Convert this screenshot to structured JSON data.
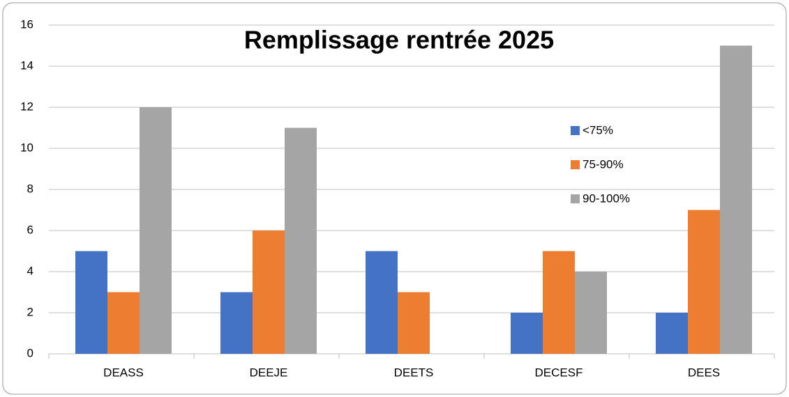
{
  "chart_data": {
    "type": "bar",
    "title": "Remplissage rentrée 2025",
    "categories": [
      "DEASS",
      "DEEJE",
      "DEETS",
      "DECESF",
      "DEES"
    ],
    "series": [
      {
        "name": "<75%",
        "color": "#4472c4",
        "values": [
          5,
          3,
          5,
          2,
          2
        ]
      },
      {
        "name": "75-90%",
        "color": "#ed7d31",
        "values": [
          3,
          6,
          3,
          5,
          7
        ]
      },
      {
        "name": "90-100%",
        "color": "#a5a5a5",
        "values": [
          12,
          11,
          0,
          4,
          15
        ]
      }
    ],
    "ylim": [
      0,
      16
    ],
    "yticks": [
      0,
      2,
      4,
      6,
      8,
      10,
      12,
      14,
      16
    ],
    "grid": true,
    "legend": "right"
  }
}
